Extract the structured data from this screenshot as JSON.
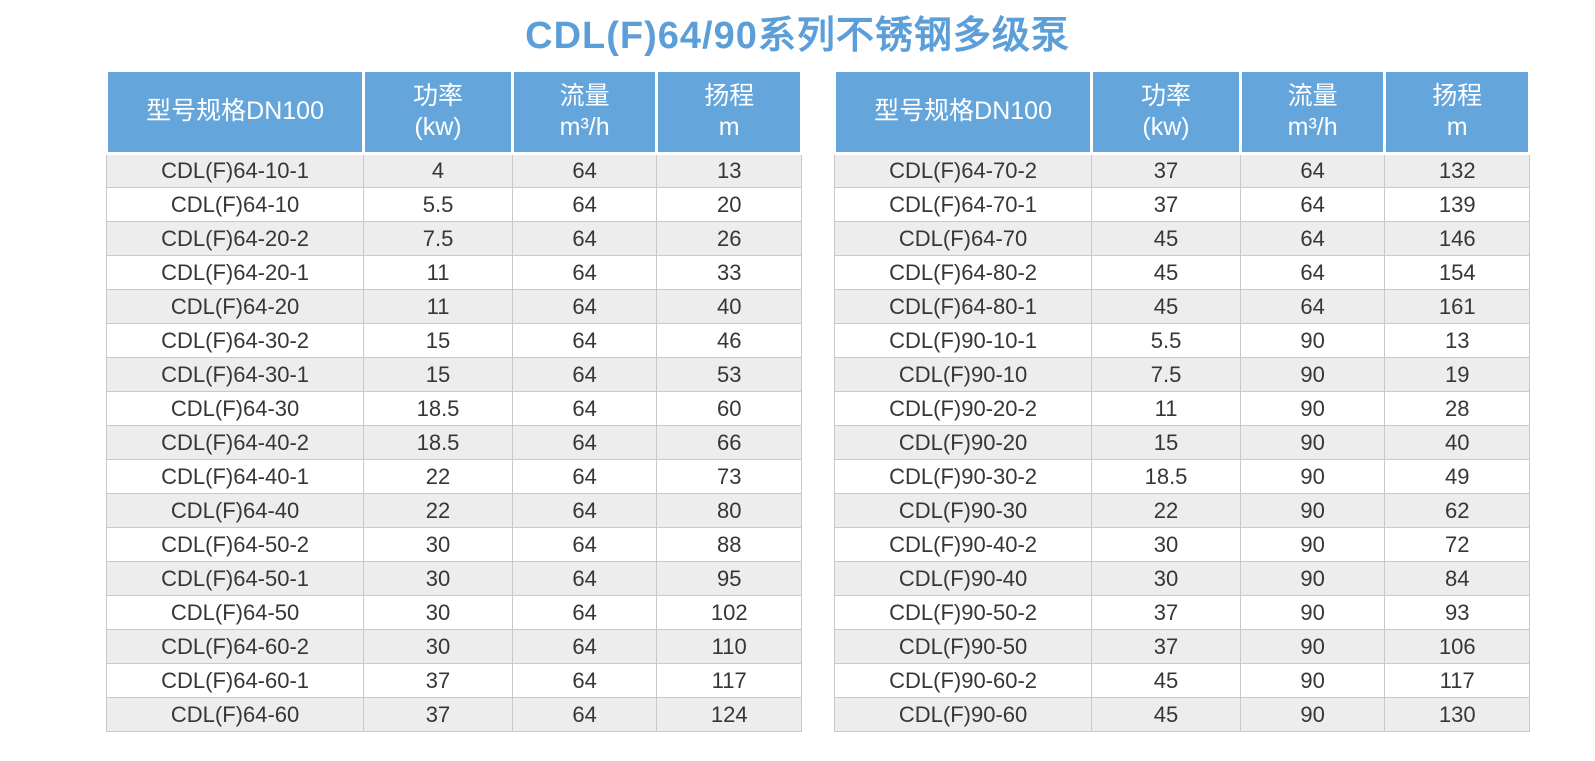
{
  "title": "CDL(F)64/90系列不锈钢多级泵",
  "colors": {
    "title_text": "#5b9ed8",
    "header_bg": "#64a6db",
    "header_text": "#ffffff",
    "row_alt_bg": "#ededed",
    "row_bg": "#ffffff",
    "grid_border": "#c9c9c9",
    "cell_text": "#363636"
  },
  "header": {
    "columns": [
      "型号规格DN100",
      "功率\n(kw)",
      "流量\nm³/h",
      "扬程\nm"
    ]
  },
  "tables": {
    "left": {
      "rows": [
        [
          "CDL(F)64-10-1",
          "4",
          "64",
          "13"
        ],
        [
          "CDL(F)64-10",
          "5.5",
          "64",
          "20"
        ],
        [
          "CDL(F)64-20-2",
          "7.5",
          "64",
          "26"
        ],
        [
          "CDL(F)64-20-1",
          "11",
          "64",
          "33"
        ],
        [
          "CDL(F)64-20",
          "11",
          "64",
          "40"
        ],
        [
          "CDL(F)64-30-2",
          "15",
          "64",
          "46"
        ],
        [
          "CDL(F)64-30-1",
          "15",
          "64",
          "53"
        ],
        [
          "CDL(F)64-30",
          "18.5",
          "64",
          "60"
        ],
        [
          "CDL(F)64-40-2",
          "18.5",
          "64",
          "66"
        ],
        [
          "CDL(F)64-40-1",
          "22",
          "64",
          "73"
        ],
        [
          "CDL(F)64-40",
          "22",
          "64",
          "80"
        ],
        [
          "CDL(F)64-50-2",
          "30",
          "64",
          "88"
        ],
        [
          "CDL(F)64-50-1",
          "30",
          "64",
          "95"
        ],
        [
          "CDL(F)64-50",
          "30",
          "64",
          "102"
        ],
        [
          "CDL(F)64-60-2",
          "30",
          "64",
          "110"
        ],
        [
          "CDL(F)64-60-1",
          "37",
          "64",
          "117"
        ],
        [
          "CDL(F)64-60",
          "37",
          "64",
          "124"
        ]
      ]
    },
    "right": {
      "rows": [
        [
          "CDL(F)64-70-2",
          "37",
          "64",
          "132"
        ],
        [
          "CDL(F)64-70-1",
          "37",
          "64",
          "139"
        ],
        [
          "CDL(F)64-70",
          "45",
          "64",
          "146"
        ],
        [
          "CDL(F)64-80-2",
          "45",
          "64",
          "154"
        ],
        [
          "CDL(F)64-80-1",
          "45",
          "64",
          "161"
        ],
        [
          "CDL(F)90-10-1",
          "5.5",
          "90",
          "13"
        ],
        [
          "CDL(F)90-10",
          "7.5",
          "90",
          "19"
        ],
        [
          "CDL(F)90-20-2",
          "11",
          "90",
          "28"
        ],
        [
          "CDL(F)90-20",
          "15",
          "90",
          "40"
        ],
        [
          "CDL(F)90-30-2",
          "18.5",
          "90",
          "49"
        ],
        [
          "CDL(F)90-30",
          "22",
          "90",
          "62"
        ],
        [
          "CDL(F)90-40-2",
          "30",
          "90",
          "72"
        ],
        [
          "CDL(F)90-40",
          "30",
          "90",
          "84"
        ],
        [
          "CDL(F)90-50-2",
          "37",
          "90",
          "93"
        ],
        [
          "CDL(F)90-50",
          "37",
          "90",
          "106"
        ],
        [
          "CDL(F)90-60-2",
          "45",
          "90",
          "117"
        ],
        [
          "CDL(F)90-60",
          "45",
          "90",
          "130"
        ]
      ]
    }
  }
}
